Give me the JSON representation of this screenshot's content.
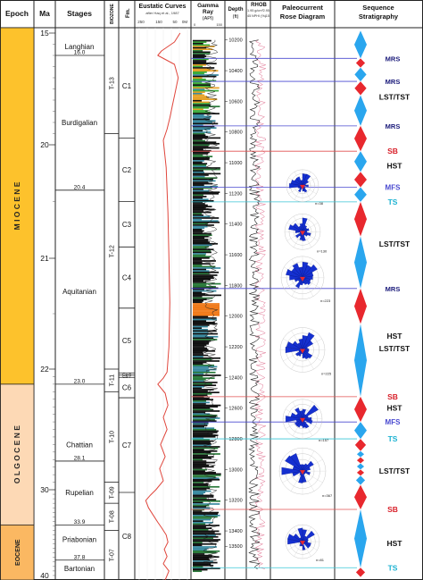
{
  "colors": {
    "miocene": "#fdc22c",
    "oligocene": "#fdd9b5",
    "eocene": "#fbb862",
    "curve": "#e0463c",
    "rose": "#1530d0",
    "seq_blue": "#2aa6ee",
    "seq_red": "#e8282e",
    "sb_line": "#e05050",
    "mfs_line": "#4a4ad0",
    "ts_line": "#39c6d6",
    "text_dark": "#1a1a7a",
    "sb_text": "#d8202a",
    "ts_text": "#1cb2d2"
  },
  "header": {
    "epoch": "Epoch",
    "ma": "Ma",
    "stages": "Stages",
    "biozone": "BIOZONE",
    "fm": "Fm.",
    "eustatic": "Eustatic Curves",
    "eustatic_sub": "after Haq et al., 1987",
    "eustatic_ticks": [
      "250",
      "150",
      "50",
      "0M"
    ],
    "gr_title": "Gamma",
    "gr_title2": "Ray",
    "gr_unit": "(API)",
    "gr_ticks": [
      "0",
      "150"
    ],
    "depth_title": "Depth",
    "depth_unit": "(ft)",
    "rhob_title": "RHOB",
    "rhob_unit": "g/cm³",
    "rhob_ticks": [
      "1.95",
      "2.95"
    ],
    "nphi_title": "NPHI (%)",
    "nphi_ticks": [
      "45",
      "-15"
    ],
    "rose_title": "Paleocurrent",
    "rose_title2": "Rose Diagram",
    "seq_title": "Sequence",
    "seq_title2": "Stratigraphy"
  },
  "epochs": [
    {
      "name": "M I O C E N E",
      "from": 15,
      "to": 23.0,
      "color_key": "miocene"
    },
    {
      "name": "O L G O C E N E",
      "from": 23.0,
      "to": 33.9,
      "color_key": "oligocene"
    },
    {
      "name": "EOCENE",
      "from": 33.9,
      "to": 40,
      "color_key": "eocene"
    }
  ],
  "ma_ticks": [
    {
      "label": "15",
      "value": 15
    },
    {
      "label": "20",
      "value": 20
    },
    {
      "label": "21",
      "value": 21
    },
    {
      "label": "22",
      "value": 22
    },
    {
      "label": "30",
      "value": 30
    },
    {
      "label": "40",
      "value": 40
    }
  ],
  "stages": [
    {
      "name": "Langhian",
      "label_value": 15.6
    },
    {
      "name": "Burdigalian",
      "label_value": 19.0
    },
    {
      "name": "Aquitanian",
      "label_value": 21.3
    },
    {
      "name": "Chattian",
      "label_value": 27.0
    },
    {
      "name": "Rupelian",
      "label_value": 30.3
    },
    {
      "name": "Priabonian",
      "label_value": 35.5
    },
    {
      "name": "Bartonian",
      "label_value": 38.7
    }
  ],
  "stage_boundaries": [
    {
      "label": "16.0",
      "value": 16.0
    },
    {
      "label": "20.4",
      "value": 20.4
    },
    {
      "label": "23.0",
      "value": 23.0
    },
    {
      "label": "28.1",
      "value": 28.1
    },
    {
      "label": "33.9",
      "value": 33.9
    },
    {
      "label": "37.8",
      "value": 37.8
    }
  ],
  "biozones": [
    {
      "name": "T-13",
      "from": 15,
      "to": 19.5
    },
    {
      "name": "T-12",
      "from": 19.5,
      "to": 22.0
    },
    {
      "name": "T-11",
      "from": 22.0,
      "to": 23.5
    },
    {
      "name": "T-10",
      "from": 23.5,
      "to": 29.5
    },
    {
      "name": "T-09",
      "from": 29.5,
      "to": 31.5
    },
    {
      "name": "T-08",
      "from": 31.5,
      "to": 34.5
    },
    {
      "name": "T-07",
      "from": 34.5,
      "to": 40
    }
  ],
  "formations": [
    {
      "name": "C1",
      "from": 15,
      "to": 19.7
    },
    {
      "name": "C2",
      "from": 19.7,
      "to": 20.5
    },
    {
      "name": "C3",
      "from": 20.5,
      "to": 20.9
    },
    {
      "name": "C4",
      "from": 20.9,
      "to": 21.45
    },
    {
      "name": "C5",
      "from": 21.45,
      "to": 22.25
    },
    {
      "name": "Ca-8",
      "from": 22.25,
      "to": 22.4
    },
    {
      "name": "Ca-7",
      "from": 22.4,
      "to": 22.55
    },
    {
      "name": "C6",
      "from": 22.55,
      "to": 23.9
    },
    {
      "name": "C7",
      "from": 23.9,
      "to": 30.3
    },
    {
      "name": "C8",
      "from": 30.3,
      "to": 40
    }
  ],
  "depth_ticks": [
    "10200",
    "10400",
    "10600",
    "10800",
    "11000",
    "11200",
    "11400",
    "11600",
    "11800",
    "12000",
    "12200",
    "12400",
    "12600",
    "12800",
    "13000",
    "13200",
    "13400",
    "13500"
  ],
  "rose_diagrams": [
    {
      "label": "n=38",
      "depth_center": 11150
    },
    {
      "label": "n=130",
      "depth_center": 11450
    },
    {
      "label": "n=223",
      "depth_center": 11750
    },
    {
      "label": "n=225",
      "depth_center": 12220
    },
    {
      "label": "n=157",
      "depth_center": 12670
    },
    {
      "label": "n=367",
      "depth_center": 13010
    },
    {
      "label": "n=81",
      "depth_center": 13470
    }
  ],
  "sequence_labels": [
    {
      "text": "MRS",
      "kind": "mrs",
      "depth": 10320
    },
    {
      "text": "MRS",
      "kind": "mrs",
      "depth": 10470
    },
    {
      "text": "LST/TST",
      "kind": "sys",
      "depth": 10570
    },
    {
      "text": "MRS",
      "kind": "mrs",
      "depth": 10760
    },
    {
      "text": "SB",
      "kind": "sb",
      "depth": 10925
    },
    {
      "text": "HST",
      "kind": "sys",
      "depth": 11020
    },
    {
      "text": "MFS",
      "kind": "mfs",
      "depth": 11160
    },
    {
      "text": "TS",
      "kind": "ts",
      "depth": 11255
    },
    {
      "text": "LST/TST",
      "kind": "sys",
      "depth": 11530
    },
    {
      "text": "MRS",
      "kind": "mrs",
      "depth": 11820
    },
    {
      "text": "HST",
      "kind": "sys",
      "depth": 12130
    },
    {
      "text": "LST/TST",
      "kind": "sys",
      "depth": 12210
    },
    {
      "text": "SB",
      "kind": "sb",
      "depth": 12525
    },
    {
      "text": "HST",
      "kind": "sys",
      "depth": 12600
    },
    {
      "text": "MFS",
      "kind": "mfs",
      "depth": 12690
    },
    {
      "text": "TS",
      "kind": "ts",
      "depth": 12800
    },
    {
      "text": "LST/TST",
      "kind": "sys",
      "depth": 13010
    },
    {
      "text": "SB",
      "kind": "sb",
      "depth": 13260
    },
    {
      "text": "HST",
      "kind": "sys",
      "depth": 13480
    },
    {
      "text": "TS",
      "kind": "ts",
      "depth": 13640
    }
  ],
  "correlation_lines": [
    {
      "kind": "mrs",
      "depth": 10320
    },
    {
      "kind": "mrs",
      "depth": 10470
    },
    {
      "kind": "mrs",
      "depth": 10760
    },
    {
      "kind": "sb",
      "depth": 10925
    },
    {
      "kind": "mfs",
      "depth": 11160
    },
    {
      "kind": "ts",
      "depth": 11255
    },
    {
      "kind": "mrs",
      "depth": 11820
    },
    {
      "kind": "sb",
      "depth": 12525
    },
    {
      "kind": "mfs",
      "depth": 12690
    },
    {
      "kind": "ts",
      "depth": 12800
    },
    {
      "kind": "sb",
      "depth": 13260
    },
    {
      "kind": "ts",
      "depth": 13640
    }
  ],
  "chart_data": {
    "type": "line",
    "title": "",
    "panels": [
      "Epoch",
      "Ma",
      "Stages",
      "BIOZONE",
      "Fm.",
      "Eustatic Curves",
      "Gamma Ray (API)",
      "Depth (ft)",
      "RHOB / NPHI",
      "Paleocurrent Rose Diagram",
      "Sequence Stratigraphy"
    ],
    "ylabel": "Depth (ft)",
    "ylim": [
      10120,
      13720
    ],
    "eustatic_curve": {
      "xlabel": "Eustatic Curves (m)",
      "xlim": [
        250,
        0
      ],
      "ma": [
        15,
        15.4,
        15.8,
        16.0,
        16.4,
        17.0,
        17.6,
        18.2,
        18.8,
        19.3,
        19.8,
        20.2,
        20.6,
        21.0,
        21.4,
        21.8,
        22.2,
        22.6,
        23.0,
        23.6,
        24.4,
        25.2,
        26.0,
        27.0,
        27.8,
        28.6,
        29.4,
        30.0,
        30.6,
        31.2,
        32.0,
        32.8,
        33.6,
        34.2,
        35.0,
        35.8,
        36.6,
        37.4,
        38.2,
        39.0,
        40.0
      ],
      "sea_level": [
        30,
        60,
        130,
        150,
        60,
        40,
        55,
        70,
        85,
        100,
        120,
        105,
        95,
        90,
        85,
        90,
        100,
        120,
        150,
        110,
        95,
        120,
        100,
        135,
        110,
        140,
        120,
        160,
        190,
        215,
        200,
        175,
        150,
        130,
        105,
        95,
        115,
        100,
        120,
        90,
        110
      ]
    },
    "rose_petals_n": [
      38,
      130,
      223,
      225,
      157,
      367,
      81
    ],
    "interpretation": [
      "MRS",
      "LST/TST",
      "SB",
      "HST",
      "MFS",
      "TS"
    ]
  }
}
